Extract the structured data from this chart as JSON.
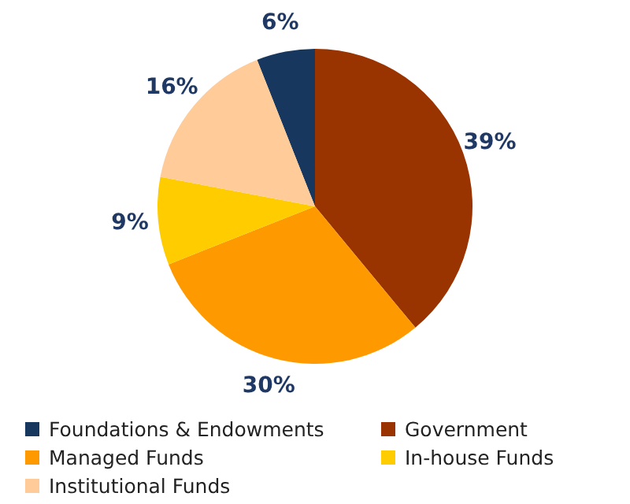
{
  "chart_data": {
    "type": "pie",
    "categories": [
      "Foundations & Endowments",
      "Government",
      "Managed Funds",
      "In-house Funds",
      "Institutional Funds"
    ],
    "values": [
      6,
      39,
      30,
      9,
      16
    ],
    "colors": [
      "#17375e",
      "#993300",
      "#ff9900",
      "#ffcc00",
      "#ffcc99"
    ],
    "value_labels": [
      "6%",
      "39%",
      "30%",
      "9%",
      "16%"
    ],
    "legend": "bottom"
  }
}
